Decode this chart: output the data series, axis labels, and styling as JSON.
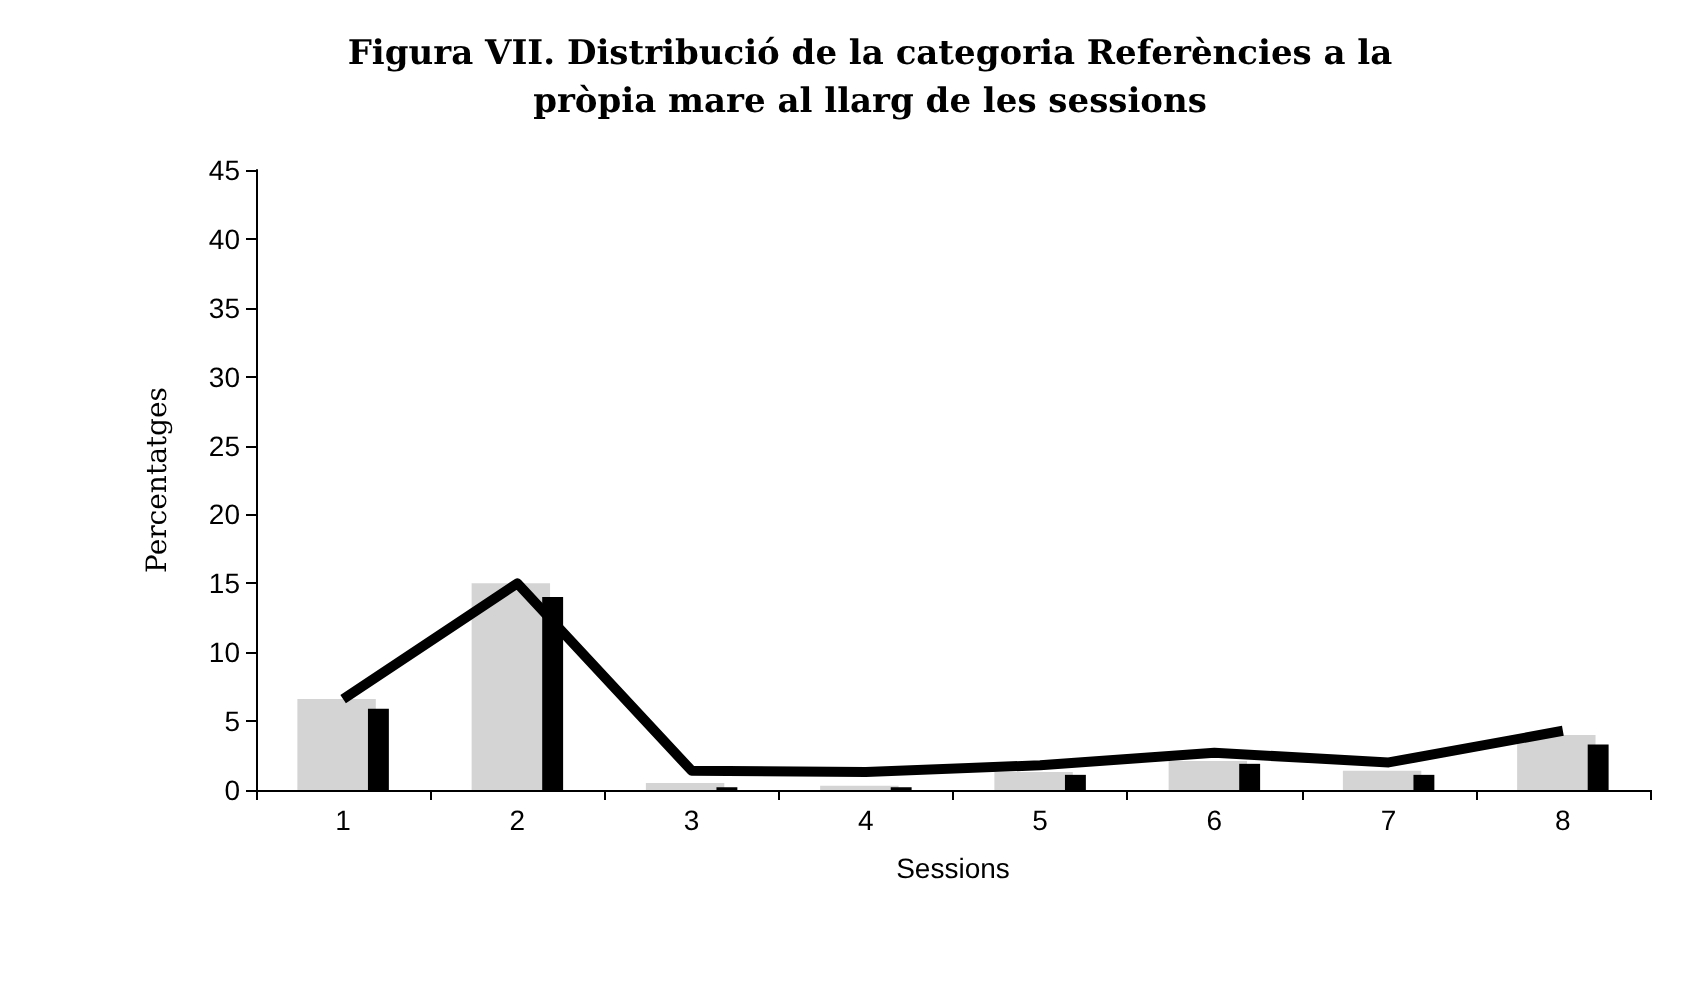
{
  "chart_data": {
    "type": "bar",
    "title": "Figura VII. Distribució de la categoria Referències a la\npròpia mare al llarg de les sessions",
    "xlabel": "Sessions",
    "ylabel": "Percentatges",
    "categories": [
      "1",
      "2",
      "3",
      "4",
      "5",
      "6",
      "7",
      "8"
    ],
    "series": [
      {
        "color": "#d4d4d4",
        "values": [
          6.6,
          15,
          0.5,
          0.3,
          1.3,
          2.1,
          1.4,
          4
        ]
      },
      {
        "color": "#000000",
        "values": [
          5.9,
          14,
          0.2,
          0.2,
          1.1,
          1.9,
          1.1,
          3.3
        ]
      },
      {
        "type": "line",
        "color": "#000000",
        "values": [
          6.6,
          15,
          1.4,
          1.3,
          1.8,
          2.7,
          2,
          4.3
        ]
      }
    ],
    "ylim": [
      0,
      45
    ],
    "yticks": [
      0,
      5,
      10,
      15,
      20,
      25,
      30,
      35,
      40,
      45
    ],
    "grid": false,
    "marker": "none",
    "line_style": "solid"
  }
}
